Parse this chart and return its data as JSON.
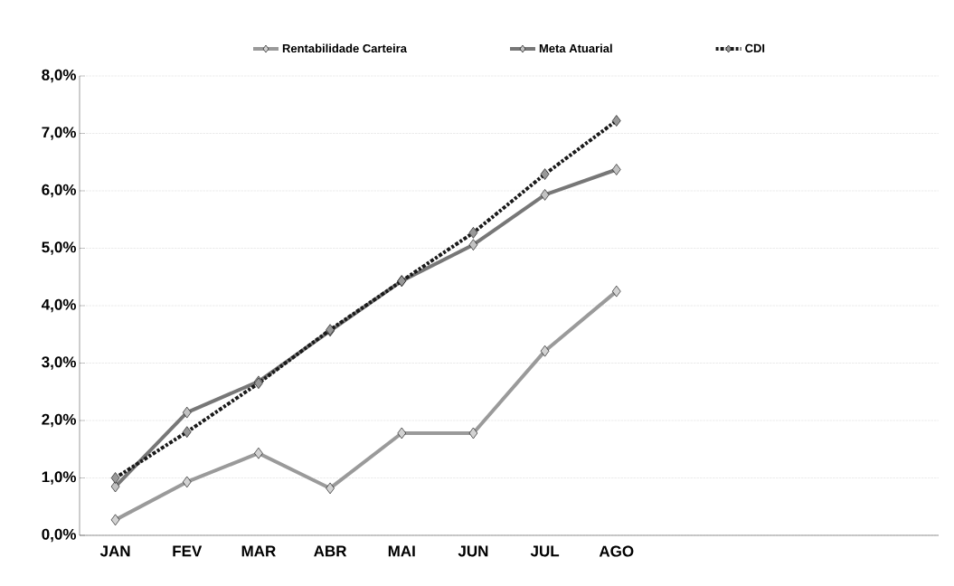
{
  "chart_data": {
    "type": "line",
    "categories": [
      "JAN",
      "FEV",
      "MAR",
      "ABR",
      "MAI",
      "JUN",
      "JUL",
      "AGO",
      null,
      null,
      null,
      null
    ],
    "series": [
      {
        "name": "Rentabilidade Carteira",
        "color": "#9a9a9a",
        "values": [
          0.27,
          0.93,
          1.43,
          0.82,
          1.78,
          1.78,
          3.21,
          4.25,
          null,
          null,
          null,
          null
        ]
      },
      {
        "name": "Meta Atuarial",
        "color": "#777777",
        "values": [
          0.85,
          2.14,
          2.68,
          3.56,
          4.43,
          5.06,
          5.93,
          6.37,
          null,
          null,
          null,
          null
        ]
      },
      {
        "name": "CDI",
        "color": "#1a1a1a",
        "line_style": "dashed",
        "values": [
          1.0,
          1.8,
          2.65,
          3.58,
          4.43,
          5.27,
          6.29,
          7.22,
          null,
          null,
          null,
          null
        ]
      }
    ],
    "ylim": [
      0,
      8
    ],
    "yticks": [
      {
        "value": 0,
        "label": "0,0%"
      },
      {
        "value": 1,
        "label": "1,0%"
      },
      {
        "value": 2,
        "label": "2,0%"
      },
      {
        "value": 3,
        "label": "3,0%"
      },
      {
        "value": 4,
        "label": "4,0%"
      },
      {
        "value": 5,
        "label": "5,0%"
      },
      {
        "value": 6,
        "label": "6,0%"
      },
      {
        "value": 7,
        "label": "7,0%"
      },
      {
        "value": 8,
        "label": "8,0%"
      }
    ],
    "grid": "y",
    "legend": "top",
    "marker": "diamond",
    "line_style": "solid"
  }
}
